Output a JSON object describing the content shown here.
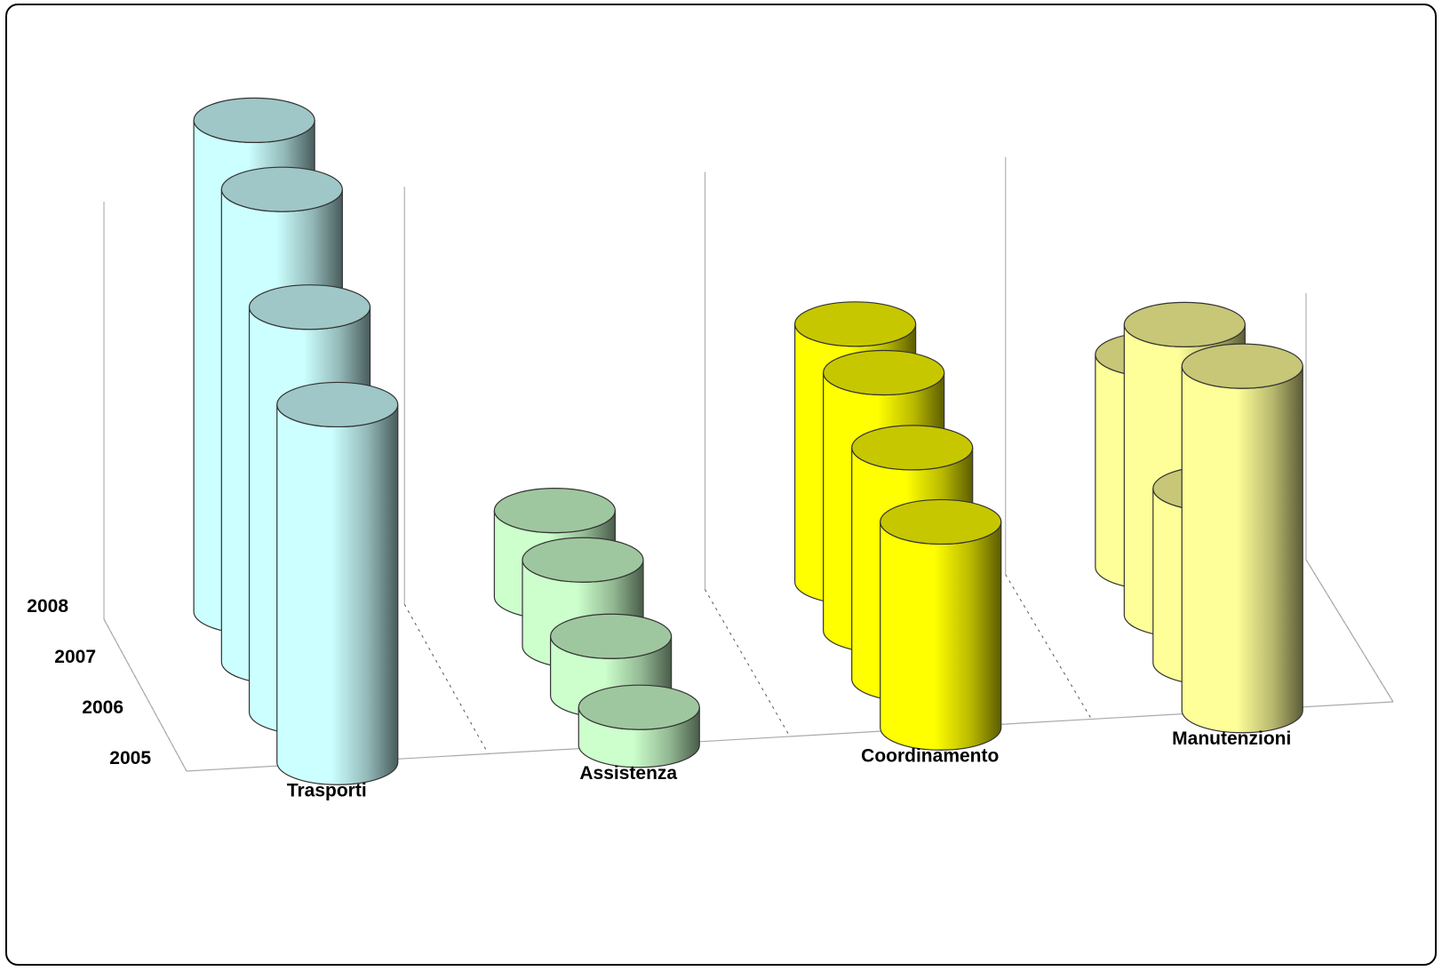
{
  "chart_data": {
    "type": "bar",
    "variant": "3d-cylinder",
    "title": "",
    "categories": [
      "Trasporti",
      "Assistenza",
      "Coordinamento",
      "Manutenzioni"
    ],
    "series": [
      {
        "name": "2005",
        "values": [
          530,
          56,
          305,
          510
        ]
      },
      {
        "name": "2006",
        "values": [
          600,
          88,
          343,
          258
        ]
      },
      {
        "name": "2007",
        "values": [
          700,
          128,
          382,
          430
        ]
      },
      {
        "name": "2008",
        "values": [
          728,
          128,
          382,
          315
        ]
      }
    ],
    "colors": {
      "Trasporti": "#ccffff",
      "Assistenza": "#ccffcc",
      "Coordinamento": "#ffff00",
      "Manutenzioni": "#ffff99"
    },
    "value_axis_visible": false,
    "gridlines": "category walls",
    "legend": "none"
  }
}
